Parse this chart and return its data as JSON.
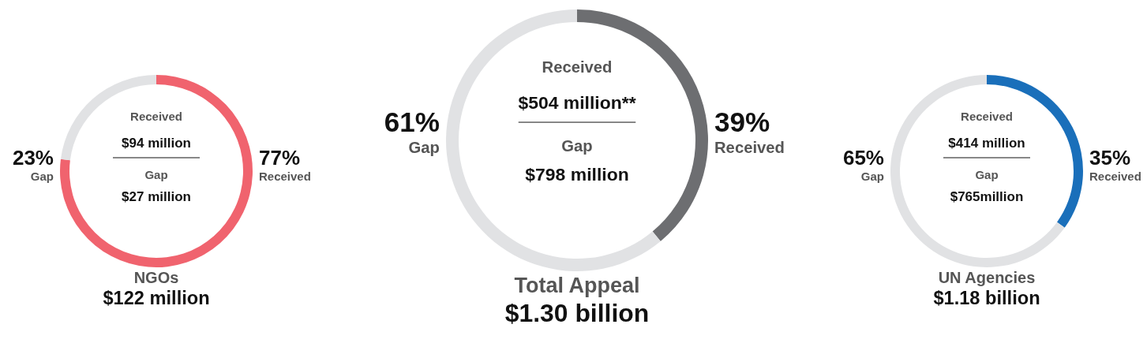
{
  "chart_data": [
    {
      "type": "donut",
      "title": "NGOs",
      "subtitle": "$122 million",
      "categories": [
        "Received",
        "Gap"
      ],
      "values": [
        77,
        23
      ],
      "colors": [
        "#f0636e",
        "#e1e2e4"
      ],
      "value_labels": [
        "77%",
        "23%"
      ],
      "annotations": [
        "Received",
        "$94 million",
        "Gap",
        "$27 million"
      ]
    },
    {
      "type": "donut",
      "title": "Total Appeal",
      "subtitle": "$1.30 billion",
      "categories": [
        "Received",
        "Gap"
      ],
      "values": [
        39,
        61
      ],
      "colors": [
        "#6d6e71",
        "#e1e2e4"
      ],
      "value_labels": [
        "39%",
        "61%"
      ],
      "annotations": [
        "Received",
        "$504 million**",
        "Gap",
        "$798 million"
      ]
    },
    {
      "type": "donut",
      "title": "UN Agencies",
      "subtitle": "$1.18 billion",
      "categories": [
        "Received",
        "Gap"
      ],
      "values": [
        35,
        65
      ],
      "colors": [
        "#1a6fba",
        "#e1e2e4"
      ],
      "value_labels": [
        "35%",
        "65%"
      ],
      "annotations": [
        "Received",
        "$414 million",
        "Gap",
        "$765million"
      ]
    }
  ]
}
